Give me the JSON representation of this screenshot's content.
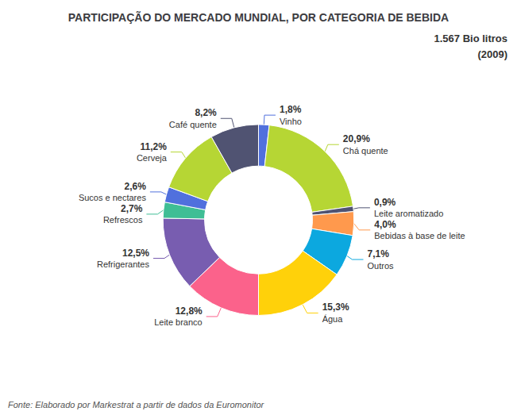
{
  "chart_data": {
    "type": "pie",
    "title": "PARTICIPAÇÃO DO MERCADO MUNDIAL, POR CATEGORIA DE BEBIDA",
    "annotations": [
      "1.567 Bio litros",
      "(2009)"
    ],
    "footer": "Fonte: Elaborado por Markestrat a partir de dados da Euromonitor",
    "categories": [
      "Vinho",
      "Chá quente",
      "Leite aromatizado",
      "Bebidas à base de leite",
      "Outros",
      "Água",
      "Leite branco",
      "Refrigerantes",
      "Refrescos",
      "Sucos e nectares",
      "Cerveja",
      "Café quente"
    ],
    "values": [
      1.8,
      20.9,
      0.9,
      4.0,
      7.1,
      15.3,
      12.8,
      12.5,
      2.7,
      2.6,
      11.2,
      8.2
    ],
    "value_labels": [
      "1,8%",
      "20,9%",
      "0,9%",
      "4,0%",
      "7,1%",
      "15,3%",
      "12,8%",
      "12,5%",
      "2,7%",
      "2,6%",
      "11,2%",
      "8,2%"
    ],
    "data_labels": true
  }
}
